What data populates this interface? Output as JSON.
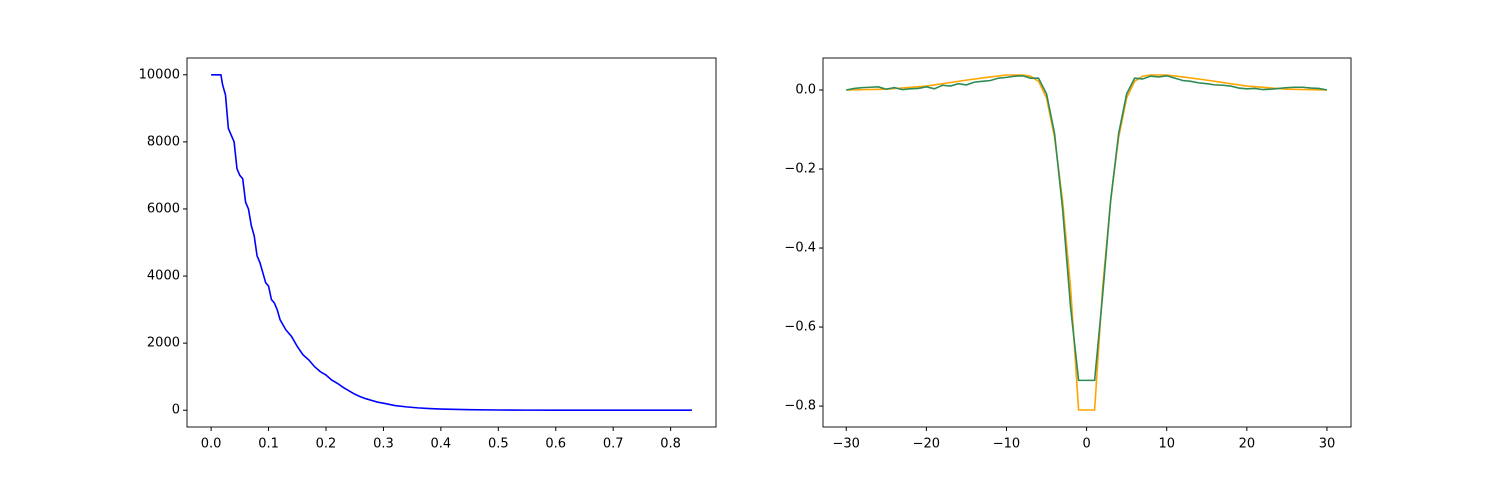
{
  "chart_data": [
    {
      "type": "line",
      "xlim": [
        -0.042,
        0.879
      ],
      "ylim": [
        -500,
        10500
      ],
      "xticks": [
        {
          "value": 0,
          "label": "0.0"
        },
        0.1,
        0.2,
        0.3,
        0.4,
        0.5,
        0.6,
        0.7,
        0.8
      ],
      "yticks": [
        0,
        2000,
        4000,
        6000,
        8000,
        10000
      ],
      "series": [
        {
          "color": "#0000ff",
          "x": [
            0,
            0.01,
            0.017,
            0.02,
            0.025,
            0.03,
            0.035,
            0.04,
            0.045,
            0.05,
            0.055,
            0.06,
            0.065,
            0.07,
            0.075,
            0.08,
            0.085,
            0.09,
            0.095,
            0.1,
            0.105,
            0.11,
            0.115,
            0.12,
            0.13,
            0.14,
            0.15,
            0.16,
            0.17,
            0.18,
            0.19,
            0.2,
            0.21,
            0.22,
            0.23,
            0.24,
            0.25,
            0.26,
            0.27,
            0.28,
            0.29,
            0.3,
            0.32,
            0.34,
            0.36,
            0.38,
            0.4,
            0.45,
            0.5,
            0.55,
            0.6,
            0.65,
            0.7,
            0.75,
            0.8,
            0.837
          ],
          "values": [
            10000,
            10000,
            10000,
            9700,
            9400,
            8400,
            8200,
            8000,
            7200,
            7000,
            6900,
            6200,
            6000,
            5500,
            5200,
            4600,
            4400,
            4100,
            3800,
            3700,
            3300,
            3200,
            3000,
            2700,
            2400,
            2200,
            1900,
            1650,
            1500,
            1300,
            1150,
            1050,
            900,
            800,
            680,
            580,
            480,
            400,
            340,
            290,
            240,
            210,
            140,
            100,
            70,
            50,
            35,
            15,
            7,
            3,
            2,
            1,
            0,
            0,
            0,
            0
          ]
        }
      ]
    },
    {
      "type": "line",
      "xlim": [
        -32.9,
        33
      ],
      "ylim": [
        -0.853,
        0.081
      ],
      "xticks": [
        {
          "value": -30,
          "label": "−30"
        },
        {
          "value": -20,
          "label": "−20"
        },
        {
          "value": -10,
          "label": "−10"
        },
        0,
        10,
        20,
        30
      ],
      "yticks": [
        {
          "value": 0,
          "label": "0.0"
        },
        {
          "value": -0.2,
          "label": "−0.2"
        },
        {
          "value": -0.4,
          "label": "−0.4"
        },
        {
          "value": -0.6,
          "label": "−0.6"
        },
        {
          "value": -0.8,
          "label": "−0.8"
        }
      ],
      "series": [
        {
          "color": "#ffa500",
          "x": [
            -30,
            -25,
            -20,
            -15,
            -12,
            -10,
            -8,
            -7,
            -6,
            -5,
            -4,
            -3,
            -2,
            -1,
            1,
            2,
            3,
            4,
            5,
            6,
            7,
            8,
            10,
            12,
            15,
            20,
            25,
            30
          ],
          "values": [
            0,
            0.002,
            0.01,
            0.025,
            0.033,
            0.038,
            0.038,
            0.035,
            0.022,
            -0.02,
            -0.12,
            -0.28,
            -0.5,
            -0.81,
            -0.81,
            -0.5,
            -0.28,
            -0.12,
            -0.02,
            0.022,
            0.035,
            0.038,
            0.038,
            0.033,
            0.025,
            0.01,
            0.002,
            0
          ]
        },
        {
          "color": "#2e8b57",
          "x": [
            -30,
            -29,
            -28,
            -27,
            -26,
            -25,
            -24,
            -23,
            -22,
            -21,
            -20,
            -19,
            -18,
            -17,
            -16,
            -15,
            -14,
            -13,
            -12,
            -11,
            -10,
            -9,
            -8,
            -7,
            -6,
            -5,
            -4,
            -3,
            -2,
            -1,
            0,
            1,
            2,
            3,
            4,
            5,
            6,
            7,
            8,
            9,
            10,
            11,
            12,
            13,
            14,
            15,
            16,
            17,
            18,
            19,
            20,
            21,
            22,
            23,
            24,
            25,
            26,
            27,
            28,
            29,
            30
          ],
          "values": [
            0,
            0.004,
            0.006,
            0.007,
            0.008,
            0.002,
            0.006,
            0.001,
            0.003,
            0.004,
            0.008,
            0.003,
            0.012,
            0.01,
            0.016,
            0.013,
            0.02,
            0.022,
            0.024,
            0.03,
            0.032,
            0.035,
            0.036,
            0.03,
            0.03,
            -0.01,
            -0.11,
            -0.3,
            -0.55,
            -0.735,
            -0.735,
            -0.735,
            -0.52,
            -0.28,
            -0.11,
            -0.01,
            0.03,
            0.028,
            0.035,
            0.033,
            0.036,
            0.03,
            0.024,
            0.022,
            0.018,
            0.016,
            0.013,
            0.012,
            0.01,
            0.005,
            0.003,
            0.004,
            0.001,
            0.002,
            0.004,
            0.006,
            0.007,
            0.007,
            0.005,
            0.004,
            0
          ]
        }
      ]
    }
  ]
}
